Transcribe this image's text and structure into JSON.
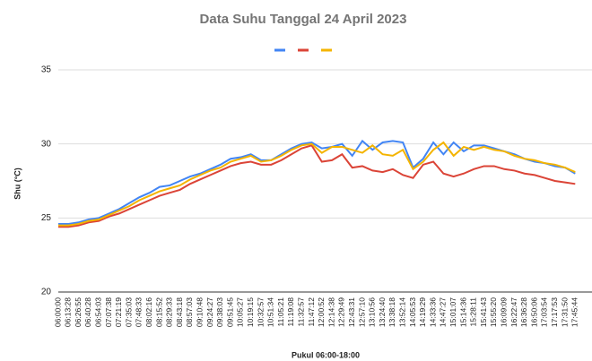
{
  "chart_data": {
    "type": "line",
    "title": "Data Suhu Tanggal 24 April 2023",
    "x_label": "Pukul 06:00-18:00",
    "y_label": "Shu (°C)",
    "categories": [
      "06:00:00",
      "06:13:28",
      "06:26:55",
      "06:40:28",
      "06:54:03",
      "07:07:38",
      "07:21:19",
      "07:35:03",
      "07:48:33",
      "08:02:16",
      "08:15:52",
      "08:29:33",
      "08:43:18",
      "08:57:03",
      "09:10:48",
      "09:24:27",
      "09:38:03",
      "09:51:45",
      "10:05:27",
      "10:19:15",
      "10:32:57",
      "10:51:34",
      "11:05:21",
      "11:19:08",
      "11:32:57",
      "11:47:12",
      "12:00:52",
      "12:14:38",
      "12:29:49",
      "12:43:31",
      "12:57:10",
      "13:10:56",
      "13:24:40",
      "13:38:18",
      "13:52:14",
      "14:05:53",
      "14:19:29",
      "14:33:36",
      "14:47:27",
      "15:01:07",
      "15:14:36",
      "15:28:11",
      "15:41:43",
      "15:55:20",
      "16:09:09",
      "16:22:47",
      "16:36:28",
      "16:50:06",
      "17:03:54",
      "17:17:53",
      "17:31:50",
      "17:45:44"
    ],
    "series": [
      {
        "color": "#4285f4",
        "values": [
          24.6,
          24.6,
          24.7,
          24.9,
          25.0,
          25.3,
          25.6,
          26.0,
          26.4,
          26.7,
          27.1,
          27.2,
          27.5,
          27.8,
          28.0,
          28.3,
          28.6,
          29.0,
          29.1,
          29.3,
          28.9,
          28.9,
          29.3,
          29.7,
          30.0,
          30.1,
          29.7,
          29.8,
          30.0,
          29.2,
          30.2,
          29.6,
          30.1,
          30.2,
          30.1,
          28.4,
          29.0,
          30.1,
          29.3,
          30.1,
          29.5,
          29.9,
          29.9,
          29.7,
          29.5,
          29.3,
          29.0,
          28.8,
          28.7,
          28.5,
          28.4,
          28.0
        ]
      },
      {
        "color": "#db4437",
        "values": [
          24.4,
          24.4,
          24.5,
          24.7,
          24.8,
          25.1,
          25.3,
          25.6,
          25.9,
          26.2,
          26.5,
          26.7,
          26.9,
          27.3,
          27.6,
          27.9,
          28.2,
          28.5,
          28.7,
          28.8,
          28.6,
          28.6,
          28.9,
          29.3,
          29.7,
          29.9,
          28.8,
          28.9,
          29.3,
          28.4,
          28.5,
          28.2,
          28.1,
          28.3,
          27.9,
          27.7,
          28.6,
          28.8,
          28.0,
          27.8,
          28.0,
          28.3,
          28.5,
          28.5,
          28.3,
          28.2,
          28.0,
          27.9,
          27.7,
          27.5,
          27.4,
          27.3
        ]
      },
      {
        "color": "#f4b400",
        "values": [
          24.5,
          24.5,
          24.6,
          24.8,
          24.9,
          25.2,
          25.5,
          25.8,
          26.2,
          26.5,
          26.8,
          27.0,
          27.2,
          27.6,
          27.9,
          28.2,
          28.4,
          28.8,
          29.0,
          29.2,
          28.8,
          28.9,
          29.2,
          29.6,
          29.9,
          30.0,
          29.4,
          29.8,
          29.8,
          29.6,
          29.4,
          29.9,
          29.3,
          29.2,
          29.6,
          28.3,
          28.8,
          29.6,
          30.1,
          29.2,
          29.8,
          29.6,
          29.8,
          29.6,
          29.5,
          29.2,
          29.0,
          28.9,
          28.7,
          28.6,
          28.4,
          28.1
        ]
      }
    ],
    "ylim": [
      20,
      35
    ],
    "yticks": [
      20,
      25,
      30,
      35
    ],
    "grid": true
  }
}
